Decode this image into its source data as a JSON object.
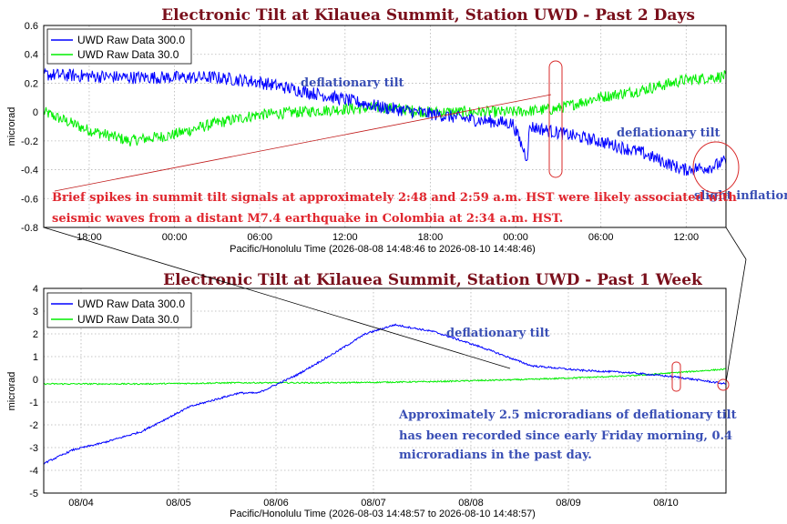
{
  "chart_data": [
    {
      "type": "line",
      "title": "Electronic Tilt at Kīlauea Summit, Station UWD - Past 2 Days",
      "ylabel": "microrad",
      "xlabel": "Pacific/Honolulu Time (2026-08-08 14:48:46 to 2026-08-10 14:48:46)",
      "ylim": [
        -0.8,
        0.6
      ],
      "yticks": [
        "0.6",
        "0.4",
        "0.2",
        "0",
        "-0.2",
        "-0.4",
        "-0.6",
        "-0.8"
      ],
      "xticks": [
        "18:00",
        "00:00",
        "06:00",
        "12:00",
        "18:00",
        "00:00",
        "06:00",
        "12:00"
      ],
      "grid": true,
      "legend": "top-left",
      "series": [
        {
          "name": "UWD Raw Data 300.0",
          "color": "#0000ff",
          "x_hours": [
            0,
            3,
            6,
            9,
            12,
            15,
            18,
            21,
            24,
            27,
            30,
            33,
            34.0,
            34.2,
            36,
            39,
            42,
            45,
            47,
            48
          ],
          "values": [
            0.26,
            0.25,
            0.24,
            0.24,
            0.24,
            0.21,
            0.15,
            0.09,
            0.03,
            -0.01,
            -0.05,
            -0.08,
            -0.32,
            -0.1,
            -0.14,
            -0.2,
            -0.28,
            -0.4,
            -0.38,
            -0.34
          ]
        },
        {
          "name": "UWD Raw Data 30.0",
          "color": "#00ee00",
          "x_hours": [
            0,
            3,
            6,
            9,
            12,
            15,
            18,
            21,
            24,
            27,
            30,
            33,
            36,
            39,
            42,
            45,
            47,
            48
          ],
          "values": [
            0.0,
            -0.12,
            -0.2,
            -0.16,
            -0.08,
            -0.02,
            0.0,
            0.02,
            0.03,
            0.0,
            0.0,
            0.0,
            0.02,
            0.1,
            0.15,
            0.22,
            0.24,
            0.25
          ]
        }
      ],
      "annotations": [
        "deflationary tilt",
        "deflationary tilt",
        "slight inflation",
        "Brief spikes in summit tilt signals at approximately 2:48 and 2:59 a.m. HST were likely associated with",
        "seismic waves from a distant M7.4 earthquake in Colombia at 2:34 a.m. HST."
      ]
    },
    {
      "type": "line",
      "title": "Electronic Tilt at Kīlauea Summit, Station UWD - Past 1 Week",
      "ylabel": "microrad",
      "xlabel": "Pacific/Honolulu Time (2026-08-03 14:48:57 to 2026-08-10 14:48:57)",
      "ylim": [
        -5,
        4
      ],
      "yticks": [
        "4",
        "3",
        "2",
        "1",
        "0",
        "-1",
        "-2",
        "-3",
        "-4",
        "-5"
      ],
      "xticks": [
        "08/04",
        "08/05",
        "08/06",
        "08/07",
        "08/08",
        "08/09",
        "08/10"
      ],
      "grid": true,
      "legend": "top-left",
      "series": [
        {
          "name": "UWD Raw Data 300.0",
          "color": "#0000ff",
          "x_days": [
            0,
            0.3,
            0.6,
            1.0,
            1.5,
            2.0,
            2.2,
            2.6,
            3.0,
            3.3,
            3.6,
            4.0,
            4.5,
            5.0,
            5.5,
            6.0,
            6.5,
            7.0
          ],
          "values": [
            -3.7,
            -3.1,
            -2.8,
            -2.3,
            -1.2,
            -0.6,
            -0.6,
            0.2,
            1.2,
            2.0,
            2.4,
            2.1,
            1.4,
            0.6,
            0.4,
            0.3,
            0.1,
            -0.2
          ]
        },
        {
          "name": "UWD Raw Data 30.0",
          "color": "#00ee00",
          "x_days": [
            0,
            1,
            2,
            3,
            4,
            5,
            6,
            6.5,
            7.0
          ],
          "values": [
            -0.2,
            -0.2,
            -0.15,
            -0.15,
            -0.1,
            0.0,
            0.15,
            0.3,
            0.45
          ]
        }
      ],
      "annotations": [
        "deflationary tilt",
        "Approximately 2.5 microradians of deflationary tilt",
        "has been recorded since early Friday morning, 0.4",
        "microradians in the past day."
      ]
    }
  ]
}
